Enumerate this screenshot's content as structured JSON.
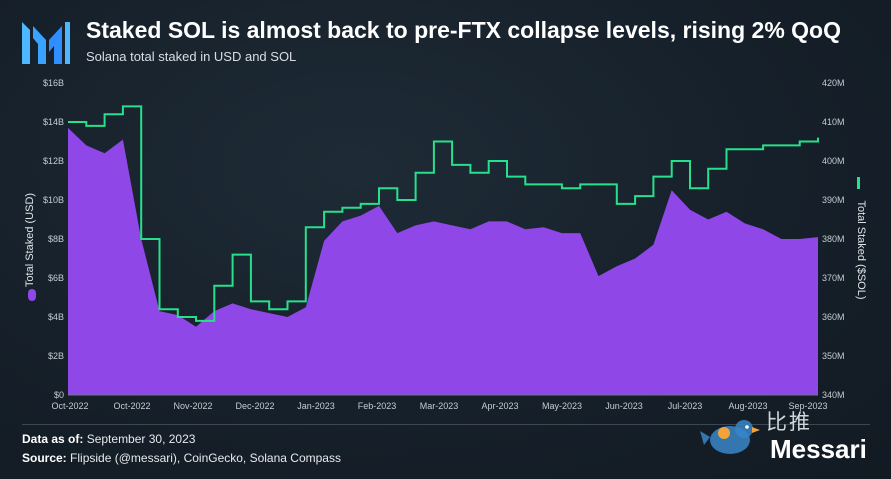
{
  "title": "Staked SOL is almost back to pre-FTX collapse levels, rising 2% QoQ",
  "subtitle": "Solana total staked in USD and SOL",
  "footer": {
    "date_label": "Data as of:",
    "date_value": "September 30, 2023",
    "source_label": "Source:",
    "source_value": "Flipside (@messari), CoinGecko, Solana Compass"
  },
  "watermark": "比推",
  "brand": "Messari",
  "colors": {
    "usd_area": "#8f47e8",
    "sol_line": "#27e08b",
    "axis_text": "#c4ccd3",
    "grid": "#2c3843"
  },
  "chart_data": {
    "type": "area",
    "title": "Staked SOL is almost back to pre-FTX collapse levels, rising 2% QoQ",
    "subtitle": "Solana total staked in USD and SOL",
    "x_tick_labels": [
      "Oct-2022",
      "Oct-2022",
      "Nov-2022",
      "Dec-2022",
      "Jan-2023",
      "Feb-2023",
      "Mar-2023",
      "Apr-2023",
      "May-2023",
      "Jun-2023",
      "Jul-2023",
      "Aug-2023",
      "Sep-2023"
    ],
    "y_left": {
      "label": "Total Staked (USD)",
      "ticks": [
        "$0",
        "$2B",
        "$4B",
        "$6B",
        "$8B",
        "$10B",
        "$12B",
        "$14B",
        "$16B"
      ],
      "range": [
        0,
        16
      ]
    },
    "y_right": {
      "label": "Total Staked ($SOL)",
      "ticks": [
        "340M",
        "350M",
        "360M",
        "370M",
        "380M",
        "390M",
        "400M",
        "410M",
        "420M"
      ],
      "range": [
        340,
        420
      ]
    },
    "grid": false,
    "legend_placement": "axis-labels",
    "x": [
      0,
      0.3,
      0.6,
      0.9,
      1.2,
      1.5,
      1.8,
      2.1,
      2.4,
      2.7,
      3.0,
      3.3,
      3.6,
      3.9,
      4.2,
      4.5,
      4.8,
      5.1,
      5.4,
      5.7,
      6.0,
      6.3,
      6.6,
      6.9,
      7.2,
      7.5,
      7.8,
      8.1,
      8.4,
      8.7,
      9.0,
      9.3,
      9.6,
      9.9,
      10.2,
      10.5,
      10.8,
      11.1,
      11.4,
      11.7,
      12.0,
      12.3
    ],
    "series": [
      {
        "name": "Total Staked (USD)",
        "axis": "left",
        "unit": "B USD",
        "values": [
          13.7,
          12.8,
          12.4,
          13.1,
          8.0,
          4.3,
          4.1,
          3.5,
          4.3,
          4.7,
          4.4,
          4.2,
          4.0,
          4.5,
          7.9,
          8.9,
          9.2,
          9.7,
          8.3,
          8.7,
          8.9,
          8.7,
          8.5,
          8.9,
          8.9,
          8.5,
          8.6,
          8.3,
          8.3,
          6.1,
          6.6,
          7.0,
          7.7,
          10.5,
          9.5,
          9.0,
          9.4,
          8.8,
          8.5,
          8.0,
          8.0,
          8.1
        ]
      },
      {
        "name": "Total Staked ($SOL)",
        "axis": "right",
        "unit": "M SOL",
        "values": [
          410,
          409,
          412,
          414,
          380,
          362,
          360,
          359,
          368,
          376,
          364,
          362,
          364,
          383,
          387,
          388,
          389,
          393,
          390,
          397,
          405,
          399,
          397,
          400,
          396,
          394,
          394,
          393,
          394,
          394,
          389,
          391,
          396,
          400,
          393,
          398,
          403,
          403,
          404,
          404,
          405,
          406
        ]
      }
    ]
  }
}
